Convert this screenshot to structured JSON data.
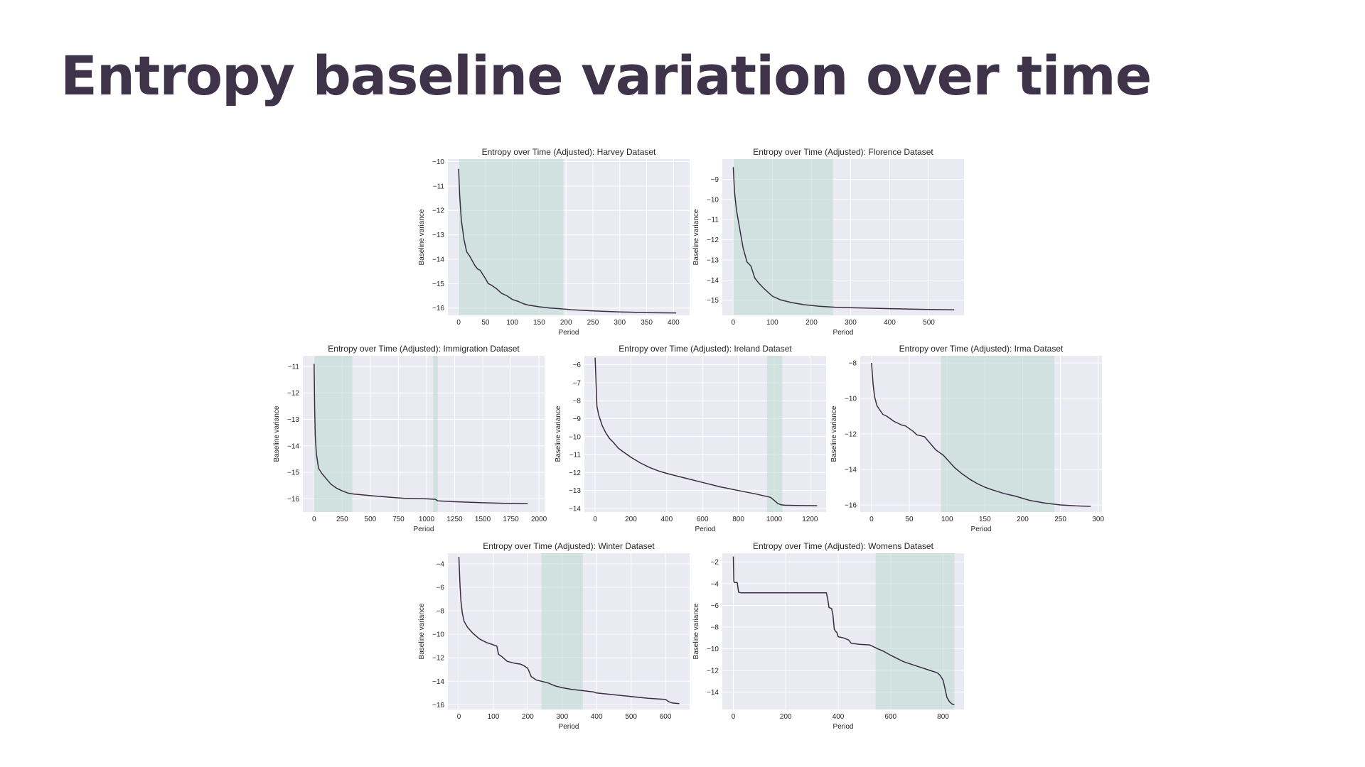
{
  "slide": {
    "title": "Entropy baseline variation over time"
  },
  "colors": {
    "title": "#3f3349",
    "line": "#3a2c42",
    "shade": "#b9d8d0",
    "axes_bg": "#eaeaf2"
  },
  "chart_data": [
    {
      "type": "line",
      "title": "Entropy over Time (Adjusted): Harvey Dataset",
      "xlabel": "Period",
      "ylabel": "Baseline variance",
      "xlim": [
        -20,
        430
      ],
      "ylim": [
        -16.3,
        -9.9
      ],
      "xticks": [
        0,
        50,
        100,
        150,
        200,
        250,
        300,
        350,
        400
      ],
      "yticks": [
        -10,
        -11,
        -12,
        -13,
        -14,
        -15,
        -16
      ],
      "shaded": [
        [
          0,
          195
        ]
      ],
      "grid": true,
      "x": [
        0,
        2,
        5,
        10,
        15,
        20,
        25,
        30,
        35,
        40,
        50,
        55,
        60,
        70,
        80,
        90,
        100,
        110,
        120,
        130,
        150,
        170,
        190,
        210,
        250,
        300,
        350,
        400,
        405
      ],
      "y": [
        -10.3,
        -11.4,
        -12.4,
        -13.2,
        -13.7,
        -13.85,
        -14.05,
        -14.25,
        -14.4,
        -14.45,
        -14.8,
        -15.0,
        -15.05,
        -15.2,
        -15.4,
        -15.5,
        -15.65,
        -15.72,
        -15.82,
        -15.88,
        -15.95,
        -16.0,
        -16.03,
        -16.07,
        -16.12,
        -16.16,
        -16.19,
        -16.2,
        -16.2
      ]
    },
    {
      "type": "line",
      "title": "Entropy over Time (Adjusted): Florence Dataset",
      "xlabel": "Period",
      "ylabel": "Baseline variance",
      "xlim": [
        -28,
        590
      ],
      "ylim": [
        -15.75,
        -8.0
      ],
      "xticks": [
        0,
        100,
        200,
        300,
        400,
        500
      ],
      "yticks": [
        -9,
        -10,
        -11,
        -12,
        -13,
        -14,
        -15
      ],
      "shaded": [
        [
          0,
          255
        ]
      ],
      "grid": true,
      "x": [
        0,
        3,
        8,
        15,
        25,
        35,
        45,
        55,
        65,
        80,
        100,
        120,
        150,
        180,
        220,
        260,
        300,
        400,
        500,
        565
      ],
      "y": [
        -8.4,
        -9.6,
        -10.5,
        -11.3,
        -12.4,
        -13.1,
        -13.3,
        -13.9,
        -14.15,
        -14.45,
        -14.8,
        -14.98,
        -15.12,
        -15.22,
        -15.3,
        -15.35,
        -15.37,
        -15.42,
        -15.46,
        -15.48
      ]
    },
    {
      "type": "line",
      "title": "Entropy over Time (Adjusted): Immigration Dataset",
      "xlabel": "Period",
      "ylabel": "Baseline variance",
      "xlim": [
        -100,
        2050
      ],
      "ylim": [
        -16.5,
        -10.6
      ],
      "xticks": [
        0,
        250,
        500,
        750,
        1000,
        1250,
        1500,
        1750,
        2000
      ],
      "yticks": [
        -11,
        -12,
        -13,
        -14,
        -15,
        -16
      ],
      "shaded": [
        [
          0,
          340
        ],
        [
          1060,
          1100
        ]
      ],
      "grid": true,
      "x": [
        0,
        5,
        10,
        20,
        40,
        70,
        100,
        150,
        200,
        250,
        300,
        350,
        500,
        700,
        800,
        1000,
        1080,
        1100,
        1300,
        1500,
        1700,
        1900
      ],
      "y": [
        -10.9,
        -12.6,
        -13.6,
        -14.3,
        -14.85,
        -15.05,
        -15.2,
        -15.45,
        -15.6,
        -15.7,
        -15.78,
        -15.82,
        -15.88,
        -15.95,
        -15.98,
        -16.0,
        -16.02,
        -16.08,
        -16.12,
        -16.15,
        -16.17,
        -16.18
      ]
    },
    {
      "type": "line",
      "title": "Entropy over Time (Adjusted): Ireland Dataset",
      "xlabel": "Period",
      "ylabel": "Baseline variance",
      "xlim": [
        -60,
        1290
      ],
      "ylim": [
        -14.2,
        -5.5
      ],
      "xticks": [
        0,
        200,
        400,
        600,
        800,
        1000,
        1200
      ],
      "yticks": [
        -6,
        -7,
        -8,
        -9,
        -10,
        -11,
        -12,
        -13,
        -14
      ],
      "shaded": [
        [
          960,
          1045
        ]
      ],
      "grid": true,
      "x": [
        0,
        5,
        10,
        20,
        40,
        60,
        80,
        100,
        130,
        150,
        200,
        250,
        300,
        350,
        400,
        500,
        600,
        700,
        800,
        900,
        980,
        1000,
        1020,
        1040,
        1060,
        1100,
        1150,
        1240
      ],
      "y": [
        -5.6,
        -7.0,
        -8.3,
        -8.8,
        -9.4,
        -9.8,
        -10.1,
        -10.3,
        -10.65,
        -10.8,
        -11.15,
        -11.45,
        -11.7,
        -11.9,
        -12.05,
        -12.3,
        -12.55,
        -12.8,
        -13.0,
        -13.2,
        -13.38,
        -13.55,
        -13.72,
        -13.8,
        -13.82,
        -13.83,
        -13.84,
        -13.85
      ]
    },
    {
      "type": "line",
      "title": "Entropy over Time (Adjusted): Irma Dataset",
      "xlabel": "Period",
      "ylabel": "Baseline variance",
      "xlim": [
        -15,
        305
      ],
      "ylim": [
        -16.4,
        -7.6
      ],
      "xticks": [
        0,
        50,
        100,
        150,
        200,
        250,
        300
      ],
      "yticks": [
        -8,
        -10,
        -12,
        -14,
        -16
      ],
      "shaded": [
        [
          92,
          242
        ]
      ],
      "grid": true,
      "x": [
        0,
        2,
        4,
        7,
        10,
        15,
        20,
        30,
        40,
        45,
        55,
        60,
        70,
        75,
        85,
        90,
        95,
        110,
        120,
        130,
        140,
        150,
        160,
        175,
        190,
        210,
        230,
        250,
        270,
        290
      ],
      "y": [
        -8.0,
        -9.2,
        -9.9,
        -10.4,
        -10.6,
        -10.9,
        -11.0,
        -11.3,
        -11.5,
        -11.55,
        -11.85,
        -12.05,
        -12.15,
        -12.4,
        -12.9,
        -13.05,
        -13.2,
        -13.9,
        -14.25,
        -14.55,
        -14.8,
        -15.0,
        -15.15,
        -15.35,
        -15.5,
        -15.75,
        -15.9,
        -16.0,
        -16.05,
        -16.08
      ]
    },
    {
      "type": "line",
      "title": "Entropy over Time (Adjusted): Winter Dataset",
      "xlabel": "Period",
      "ylabel": "Baseline variance",
      "xlim": [
        -32,
        670
      ],
      "ylim": [
        -16.4,
        -3.1
      ],
      "xticks": [
        0,
        100,
        200,
        300,
        400,
        500,
        600
      ],
      "yticks": [
        -4,
        -6,
        -8,
        -10,
        -12,
        -14,
        -16
      ],
      "shaded": [
        [
          240,
          360
        ]
      ],
      "grid": true,
      "x": [
        0,
        3,
        6,
        10,
        15,
        25,
        40,
        60,
        80,
        100,
        110,
        115,
        125,
        140,
        160,
        180,
        190,
        200,
        210,
        225,
        240,
        260,
        280,
        300,
        330,
        360,
        390,
        400,
        450,
        500,
        550,
        600,
        610,
        620,
        640
      ],
      "y": [
        -3.4,
        -5.8,
        -7.2,
        -8.2,
        -8.9,
        -9.4,
        -9.9,
        -10.4,
        -10.7,
        -10.9,
        -11.0,
        -11.7,
        -11.9,
        -12.3,
        -12.45,
        -12.55,
        -12.7,
        -12.9,
        -13.6,
        -13.9,
        -14.0,
        -14.15,
        -14.4,
        -14.55,
        -14.7,
        -14.8,
        -14.9,
        -15.0,
        -15.15,
        -15.3,
        -15.45,
        -15.55,
        -15.75,
        -15.85,
        -15.9
      ]
    },
    {
      "type": "line",
      "title": "Entropy over Time (Adjusted): Womens Dataset",
      "xlabel": "Period",
      "ylabel": "Baseline variance",
      "xlim": [
        -42,
        880
      ],
      "ylim": [
        -15.6,
        -1.2
      ],
      "xticks": [
        0,
        200,
        400,
        600,
        800
      ],
      "yticks": [
        -2,
        -4,
        -6,
        -8,
        -10,
        -12,
        -14
      ],
      "shaded": [
        [
          543,
          843
        ]
      ],
      "grid": true,
      "x": [
        0,
        2,
        5,
        15,
        20,
        30,
        100,
        200,
        300,
        355,
        360,
        365,
        375,
        380,
        385,
        390,
        395,
        400,
        420,
        440,
        450,
        480,
        520,
        550,
        570,
        600,
        650,
        700,
        750,
        770,
        780,
        790,
        800,
        805,
        815,
        825,
        835,
        843
      ],
      "y": [
        -1.5,
        -3.8,
        -3.9,
        -3.9,
        -4.8,
        -4.85,
        -4.85,
        -4.85,
        -4.85,
        -4.85,
        -5.4,
        -6.2,
        -6.3,
        -6.9,
        -8.2,
        -8.4,
        -8.5,
        -8.9,
        -9.0,
        -9.2,
        -9.5,
        -9.6,
        -9.65,
        -10.0,
        -10.2,
        -10.6,
        -11.2,
        -11.6,
        -12.0,
        -12.15,
        -12.25,
        -12.5,
        -12.9,
        -13.4,
        -14.5,
        -14.9,
        -15.1,
        -15.15
      ]
    }
  ]
}
